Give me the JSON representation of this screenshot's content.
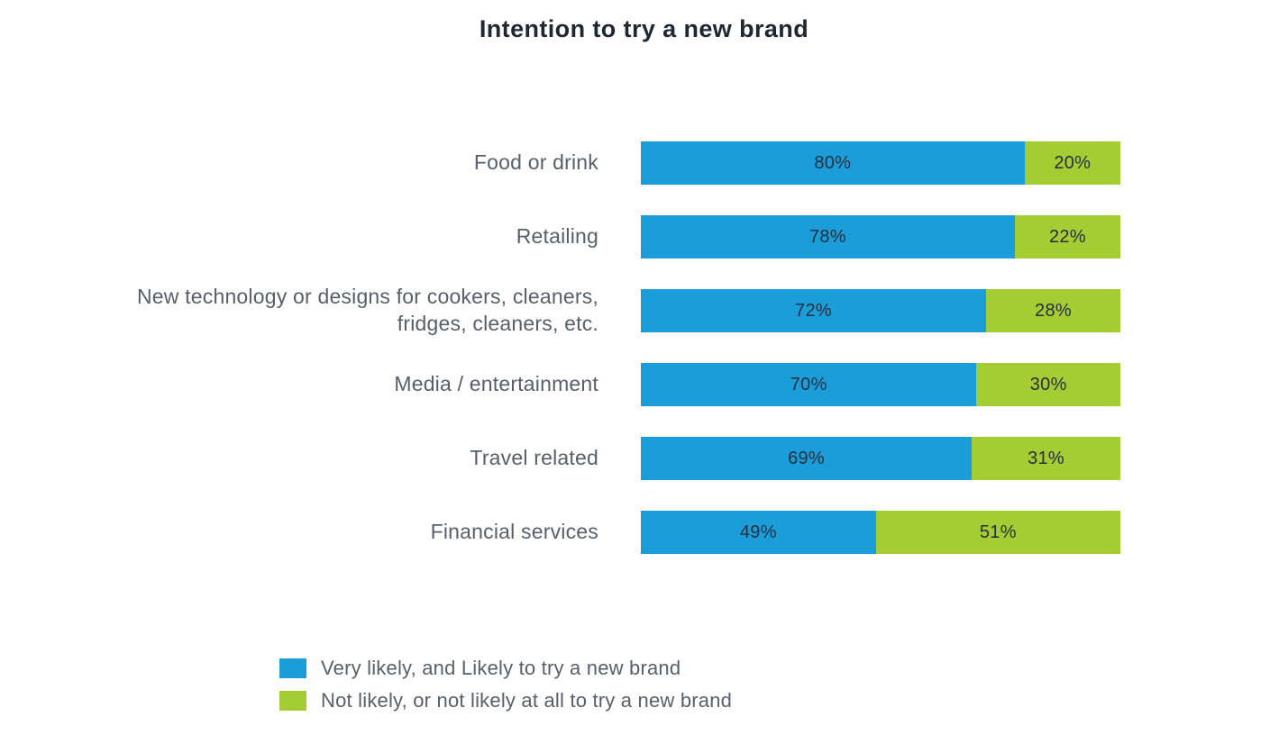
{
  "chart_data": {
    "type": "bar",
    "orientation": "horizontal",
    "stacked": true,
    "title": "Intention to try a new brand",
    "categories": [
      "Food or drink",
      "Retailing",
      "New technology or designs for cookers, cleaners, fridges, cleaners, etc.",
      "Media / entertainment",
      "Travel related",
      "Financial services"
    ],
    "series": [
      {
        "name": "Very likely, and Likely to try a new brand",
        "color": "#1b9dd9",
        "values": [
          80,
          78,
          72,
          70,
          69,
          49
        ]
      },
      {
        "name": "Not likely, or not likely at all to try a new brand",
        "color": "#a4cd33",
        "values": [
          20,
          22,
          28,
          30,
          31,
          51
        ]
      }
    ],
    "value_format": "percent",
    "xlim": [
      0,
      100
    ],
    "grid": false,
    "legend_position": "bottom-left"
  }
}
